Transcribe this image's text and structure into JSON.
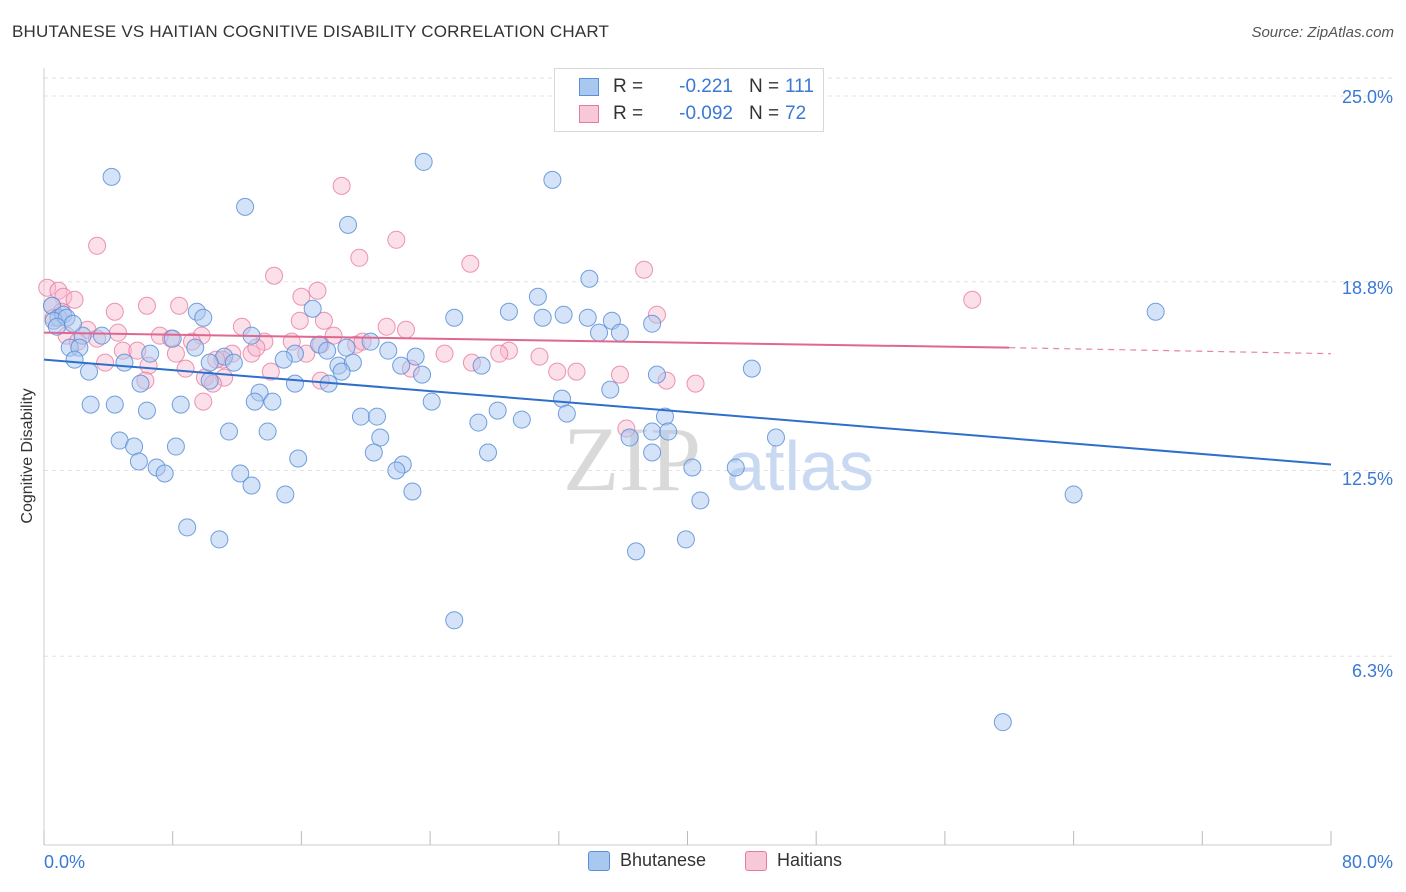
{
  "title": "BHUTANESE VS HAITIAN COGNITIVE DISABILITY CORRELATION CHART",
  "source": "Source: ZipAtlas.com",
  "watermark": {
    "zip": "ZIP",
    "atlas": "atlas"
  },
  "colors": {
    "blue_fill": "#a9c8f0",
    "blue_stroke": "#5b8fd8",
    "blue_line": "#2f6fcc",
    "pink_fill": "#f7b9cf",
    "pink_stroke": "#e87aa0",
    "pink_line": "#e0678f",
    "tick_text": "#3a78d4",
    "grid": "#e2e2e2"
  },
  "legend_top": {
    "rows": [
      {
        "r_label": "R =",
        "r_value": "-0.221",
        "n_label": "N =",
        "n_value": "111"
      },
      {
        "r_label": "R =",
        "r_value": "-0.092",
        "n_label": "N =",
        "n_value": "72"
      }
    ]
  },
  "legend_bottom": {
    "items": [
      "Bhutanese",
      "Haitians"
    ]
  },
  "chart_data": {
    "type": "scatter",
    "title": "BHUTANESE VS HAITIAN COGNITIVE DISABILITY CORRELATION CHART",
    "xlabel": "",
    "ylabel": "Cognitive Disability",
    "xlim": [
      0,
      80
    ],
    "ylim": [
      0,
      25.6
    ],
    "x_tick_labels": [
      "0.0%",
      "80.0%"
    ],
    "y_ticks": [
      6.3,
      12.5,
      18.8,
      25.0
    ],
    "y_tick_labels": [
      "6.3%",
      "12.5%",
      "18.8%",
      "25.0%"
    ],
    "grid": true,
    "legend_position": "bottom",
    "series": [
      {
        "name": "Bhutanese",
        "r": -0.221,
        "n": 111,
        "trend": {
          "x": [
            0,
            80
          ],
          "y": [
            16.2,
            12.7
          ]
        },
        "points": [
          [
            4.2,
            22.3
          ],
          [
            23.6,
            22.8
          ],
          [
            31.6,
            22.2
          ],
          [
            12.5,
            21.3
          ],
          [
            18.9,
            20.7
          ],
          [
            33.9,
            18.9
          ],
          [
            30.7,
            18.3
          ],
          [
            0.5,
            18.0
          ],
          [
            0.9,
            17.6
          ],
          [
            1.2,
            17.7
          ],
          [
            0.6,
            17.5
          ],
          [
            1.4,
            17.6
          ],
          [
            16.7,
            17.9
          ],
          [
            9.5,
            17.8
          ],
          [
            28.9,
            17.8
          ],
          [
            31.0,
            17.6
          ],
          [
            32.3,
            17.7
          ],
          [
            33.8,
            17.6
          ],
          [
            35.3,
            17.5
          ],
          [
            37.8,
            17.4
          ],
          [
            9.9,
            17.6
          ],
          [
            25.5,
            17.6
          ],
          [
            34.5,
            17.1
          ],
          [
            35.8,
            17.1
          ],
          [
            69.1,
            17.8
          ],
          [
            2.4,
            17.0
          ],
          [
            3.6,
            17.0
          ],
          [
            8.0,
            16.9
          ],
          [
            12.9,
            17.0
          ],
          [
            20.3,
            16.8
          ],
          [
            1.6,
            16.6
          ],
          [
            2.2,
            16.6
          ],
          [
            9.4,
            16.6
          ],
          [
            15.6,
            16.4
          ],
          [
            17.1,
            16.7
          ],
          [
            17.6,
            16.5
          ],
          [
            18.8,
            16.6
          ],
          [
            11.2,
            16.3
          ],
          [
            11.8,
            16.1
          ],
          [
            14.9,
            16.2
          ],
          [
            21.4,
            16.5
          ],
          [
            23.1,
            16.3
          ],
          [
            6.6,
            16.4
          ],
          [
            1.9,
            16.2
          ],
          [
            5.0,
            16.1
          ],
          [
            10.3,
            16.1
          ],
          [
            18.3,
            16.0
          ],
          [
            19.2,
            16.1
          ],
          [
            22.2,
            16.0
          ],
          [
            27.2,
            16.0
          ],
          [
            2.8,
            15.8
          ],
          [
            18.5,
            15.8
          ],
          [
            23.5,
            15.7
          ],
          [
            38.1,
            15.7
          ],
          [
            44.0,
            15.9
          ],
          [
            6.0,
            15.4
          ],
          [
            10.3,
            15.5
          ],
          [
            15.6,
            15.4
          ],
          [
            17.7,
            15.4
          ],
          [
            13.4,
            15.1
          ],
          [
            35.2,
            15.2
          ],
          [
            2.9,
            14.7
          ],
          [
            4.4,
            14.7
          ],
          [
            6.4,
            14.5
          ],
          [
            8.5,
            14.7
          ],
          [
            13.1,
            14.8
          ],
          [
            14.2,
            14.8
          ],
          [
            24.1,
            14.8
          ],
          [
            28.2,
            14.5
          ],
          [
            32.2,
            14.9
          ],
          [
            32.5,
            14.4
          ],
          [
            19.7,
            14.3
          ],
          [
            20.7,
            14.3
          ],
          [
            27.0,
            14.1
          ],
          [
            29.7,
            14.2
          ],
          [
            38.6,
            14.3
          ],
          [
            11.5,
            13.8
          ],
          [
            13.9,
            13.8
          ],
          [
            4.7,
            13.5
          ],
          [
            5.6,
            13.3
          ],
          [
            8.2,
            13.3
          ],
          [
            20.9,
            13.6
          ],
          [
            36.4,
            13.6
          ],
          [
            37.8,
            13.8
          ],
          [
            38.8,
            13.8
          ],
          [
            45.5,
            13.6
          ],
          [
            20.5,
            13.1
          ],
          [
            27.6,
            13.1
          ],
          [
            37.8,
            13.1
          ],
          [
            5.9,
            12.8
          ],
          [
            7.0,
            12.6
          ],
          [
            7.5,
            12.4
          ],
          [
            15.8,
            12.9
          ],
          [
            22.3,
            12.7
          ],
          [
            40.3,
            12.6
          ],
          [
            43.0,
            12.6
          ],
          [
            12.2,
            12.4
          ],
          [
            21.9,
            12.5
          ],
          [
            12.9,
            12.0
          ],
          [
            15.0,
            11.7
          ],
          [
            22.9,
            11.8
          ],
          [
            40.8,
            11.5
          ],
          [
            64.0,
            11.7
          ],
          [
            8.9,
            10.6
          ],
          [
            10.9,
            10.2
          ],
          [
            39.9,
            10.2
          ],
          [
            36.8,
            9.8
          ],
          [
            25.5,
            7.5
          ],
          [
            59.6,
            4.1
          ],
          [
            0.8,
            17.3
          ],
          [
            1.8,
            17.4
          ]
        ]
      },
      {
        "name": "Haitians",
        "r": -0.092,
        "n": 72,
        "trend": {
          "x": [
            0,
            60
          ],
          "y": [
            17.1,
            16.6
          ]
        },
        "trend_dashed": {
          "x": [
            60,
            80
          ],
          "y": [
            16.6,
            16.4
          ]
        },
        "points": [
          [
            18.5,
            22.0
          ],
          [
            3.3,
            20.0
          ],
          [
            21.9,
            20.2
          ],
          [
            19.6,
            19.6
          ],
          [
            26.5,
            19.4
          ],
          [
            37.3,
            19.2
          ],
          [
            14.3,
            19.0
          ],
          [
            17.0,
            18.5
          ],
          [
            16.0,
            18.3
          ],
          [
            0.2,
            18.6
          ],
          [
            0.9,
            18.5
          ],
          [
            1.2,
            18.3
          ],
          [
            1.9,
            18.2
          ],
          [
            57.7,
            18.2
          ],
          [
            0.5,
            18.0
          ],
          [
            6.4,
            18.0
          ],
          [
            8.4,
            18.0
          ],
          [
            1.1,
            17.8
          ],
          [
            4.4,
            17.8
          ],
          [
            38.1,
            17.7
          ],
          [
            15.9,
            17.5
          ],
          [
            17.4,
            17.5
          ],
          [
            12.3,
            17.3
          ],
          [
            21.3,
            17.3
          ],
          [
            22.5,
            17.2
          ],
          [
            2.7,
            17.2
          ],
          [
            4.6,
            17.1
          ],
          [
            7.2,
            17.0
          ],
          [
            3.3,
            16.9
          ],
          [
            9.8,
            17.0
          ],
          [
            18.0,
            17.0
          ],
          [
            9.2,
            16.8
          ],
          [
            13.7,
            16.8
          ],
          [
            15.4,
            16.8
          ],
          [
            17.2,
            16.7
          ],
          [
            19.4,
            16.7
          ],
          [
            4.9,
            16.5
          ],
          [
            5.8,
            16.5
          ],
          [
            8.2,
            16.4
          ],
          [
            11.7,
            16.4
          ],
          [
            12.9,
            16.4
          ],
          [
            28.9,
            16.5
          ],
          [
            11.1,
            16.2
          ],
          [
            16.3,
            16.4
          ],
          [
            6.5,
            16.0
          ],
          [
            10.7,
            16.2
          ],
          [
            26.6,
            16.1
          ],
          [
            3.8,
            16.1
          ],
          [
            8.8,
            15.9
          ],
          [
            14.1,
            15.8
          ],
          [
            22.8,
            15.9
          ],
          [
            31.9,
            15.8
          ],
          [
            33.1,
            15.8
          ],
          [
            35.8,
            15.7
          ],
          [
            10.0,
            15.6
          ],
          [
            11.2,
            15.6
          ],
          [
            6.3,
            15.5
          ],
          [
            10.5,
            15.4
          ],
          [
            17.2,
            15.5
          ],
          [
            38.7,
            15.5
          ],
          [
            40.5,
            15.4
          ],
          [
            9.9,
            14.8
          ],
          [
            28.3,
            16.4
          ],
          [
            36.2,
            13.9
          ],
          [
            1.4,
            17.0
          ],
          [
            2.1,
            16.8
          ],
          [
            7.9,
            16.9
          ],
          [
            13.2,
            16.6
          ],
          [
            19.8,
            16.8
          ],
          [
            24.9,
            16.4
          ],
          [
            30.8,
            16.3
          ],
          [
            0.6,
            17.6
          ]
        ]
      }
    ]
  }
}
